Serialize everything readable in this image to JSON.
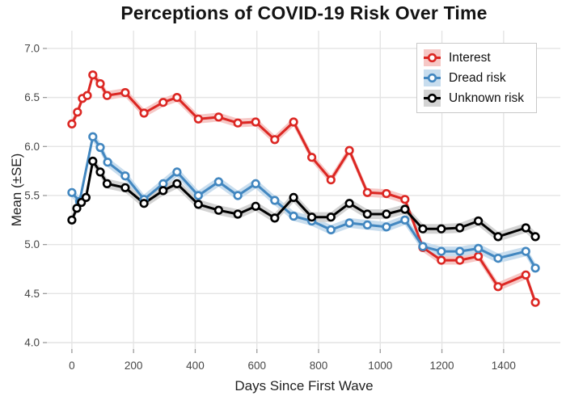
{
  "title": "Perceptions of COVID-19 Risk Over Time",
  "x_axis": {
    "label": "Days Since First Wave",
    "tick_labels": [
      "0",
      "200",
      "400",
      "600",
      "800",
      "1000",
      "1200",
      "1400"
    ],
    "tick_values": [
      0,
      200,
      400,
      600,
      800,
      1000,
      1200,
      1400
    ],
    "domain": [
      -81,
      1584
    ]
  },
  "y_axis": {
    "label": "Mean (±SE)",
    "tick_labels": [
      "4.0",
      "4.5",
      "5.0",
      "5.5",
      "6.0",
      "6.5",
      "7.0"
    ],
    "tick_values": [
      4.0,
      4.5,
      5.0,
      5.5,
      6.0,
      6.5,
      7.0
    ],
    "domain": [
      3.934,
      7.181
    ]
  },
  "colors": {
    "red": "#dc2723",
    "blue": "#4287c0",
    "black": "#000000",
    "red_ribbon": "#f6c8c6",
    "blue_ribbon": "#c8ddee",
    "gray_ribbon": "#d3d3d3",
    "grid": "#e4e4e4",
    "tick": "#9a9a9a",
    "axis_text": "#474747",
    "title_text": "#141414",
    "legend_border": "#c9c9c9"
  },
  "legend": {
    "position": "top-right",
    "items": [
      {
        "label": "Interest",
        "color": "#dc2723",
        "ribbon": "#f6c8c6"
      },
      {
        "label": "Dread risk",
        "color": "#4287c0",
        "ribbon": "#c8ddee"
      },
      {
        "label": "Unknown risk",
        "color": "#000000",
        "ribbon": "#d3d3d3"
      }
    ]
  },
  "chart_data": {
    "type": "line",
    "title": "Perceptions of COVID-19 Risk Over Time",
    "xlabel": "Days Since First Wave",
    "ylabel": "Mean (±SE)",
    "xlim": [
      -81,
      1584
    ],
    "ylim": [
      3.934,
      7.181
    ],
    "grid": true,
    "legend_position": "top-right",
    "point_style": "open-circle",
    "ribbon": "standard-error band around each line",
    "series": [
      {
        "name": "Interest",
        "color": "#dc2723",
        "ribbon_color": "#f6c8c6",
        "se": 0.045,
        "points": [
          [
            0,
            6.23
          ],
          [
            18,
            6.35
          ],
          [
            34,
            6.49
          ],
          [
            50,
            6.52
          ],
          [
            68,
            6.73
          ],
          [
            92,
            6.64
          ],
          [
            114,
            6.52
          ],
          [
            173,
            6.55
          ],
          [
            234,
            6.34
          ],
          [
            296,
            6.45
          ],
          [
            341,
            6.5
          ],
          [
            410,
            6.28
          ],
          [
            476,
            6.3
          ],
          [
            538,
            6.24
          ],
          [
            596,
            6.25
          ],
          [
            658,
            6.07
          ],
          [
            719,
            6.25
          ],
          [
            778,
            5.89
          ],
          [
            840,
            5.66
          ],
          [
            900,
            5.96
          ],
          [
            958,
            5.53
          ],
          [
            1020,
            5.52
          ],
          [
            1080,
            5.46
          ],
          [
            1138,
            4.97
          ],
          [
            1198,
            4.84
          ],
          [
            1258,
            4.84
          ],
          [
            1318,
            4.88
          ],
          [
            1382,
            4.57
          ],
          [
            1472,
            4.69
          ],
          [
            1503,
            4.41
          ]
        ]
      },
      {
        "name": "Dread risk",
        "color": "#4287c0",
        "ribbon_color": "#c8ddee",
        "se": 0.05,
        "points": [
          [
            0,
            5.53
          ],
          [
            25,
            5.44
          ],
          [
            68,
            6.1
          ],
          [
            92,
            5.99
          ],
          [
            116,
            5.84
          ],
          [
            173,
            5.7
          ],
          [
            234,
            5.46
          ],
          [
            296,
            5.62
          ],
          [
            341,
            5.74
          ],
          [
            410,
            5.5
          ],
          [
            476,
            5.64
          ],
          [
            538,
            5.5
          ],
          [
            596,
            5.62
          ],
          [
            658,
            5.45
          ],
          [
            719,
            5.29
          ],
          [
            778,
            5.24
          ],
          [
            840,
            5.15
          ],
          [
            900,
            5.22
          ],
          [
            958,
            5.2
          ],
          [
            1020,
            5.18
          ],
          [
            1080,
            5.25
          ],
          [
            1138,
            4.98
          ],
          [
            1198,
            4.93
          ],
          [
            1258,
            4.93
          ],
          [
            1318,
            4.96
          ],
          [
            1382,
            4.86
          ],
          [
            1472,
            4.93
          ],
          [
            1503,
            4.76
          ]
        ]
      },
      {
        "name": "Unknown risk",
        "color": "#000000",
        "ribbon_color": "#d3d3d3",
        "se": 0.05,
        "points": [
          [
            0,
            5.25
          ],
          [
            16,
            5.37
          ],
          [
            31,
            5.43
          ],
          [
            46,
            5.48
          ],
          [
            68,
            5.85
          ],
          [
            92,
            5.74
          ],
          [
            114,
            5.62
          ],
          [
            173,
            5.58
          ],
          [
            234,
            5.42
          ],
          [
            296,
            5.55
          ],
          [
            341,
            5.62
          ],
          [
            410,
            5.41
          ],
          [
            476,
            5.35
          ],
          [
            538,
            5.31
          ],
          [
            596,
            5.39
          ],
          [
            658,
            5.27
          ],
          [
            719,
            5.48
          ],
          [
            778,
            5.28
          ],
          [
            840,
            5.28
          ],
          [
            900,
            5.42
          ],
          [
            958,
            5.31
          ],
          [
            1020,
            5.31
          ],
          [
            1080,
            5.36
          ],
          [
            1138,
            5.16
          ],
          [
            1198,
            5.16
          ],
          [
            1258,
            5.17
          ],
          [
            1318,
            5.24
          ],
          [
            1382,
            5.08
          ],
          [
            1472,
            5.17
          ],
          [
            1503,
            5.08
          ]
        ]
      }
    ]
  }
}
